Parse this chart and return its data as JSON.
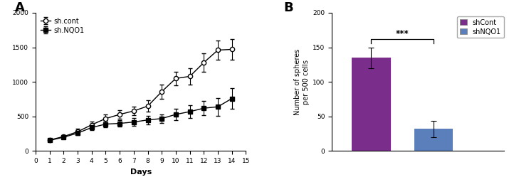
{
  "panel_A": {
    "days": [
      1,
      2,
      3,
      4,
      5,
      6,
      7,
      8,
      9,
      10,
      11,
      12,
      13,
      14
    ],
    "shcont_mean": [
      160,
      210,
      280,
      380,
      470,
      530,
      580,
      650,
      860,
      1050,
      1080,
      1280,
      1460,
      1470
    ],
    "shcont_err": [
      20,
      25,
      40,
      50,
      60,
      60,
      60,
      80,
      100,
      100,
      120,
      130,
      140,
      150
    ],
    "shnqo1_mean": [
      155,
      200,
      260,
      340,
      390,
      400,
      420,
      450,
      470,
      530,
      570,
      620,
      640,
      760
    ],
    "shnqo1_err": [
      15,
      20,
      30,
      40,
      50,
      50,
      60,
      60,
      60,
      80,
      90,
      100,
      130,
      150
    ],
    "xlabel": "Days",
    "ylim": [
      0,
      2000
    ],
    "yticks": [
      0,
      500,
      1000,
      1500,
      2000
    ],
    "xticks": [
      0,
      1,
      2,
      3,
      4,
      5,
      6,
      7,
      8,
      9,
      10,
      11,
      12,
      13,
      14,
      15
    ],
    "legend_shcont": "sh.cont",
    "legend_shnqo1": "sh.NQO1",
    "panel_label": "A"
  },
  "panel_B": {
    "categories": [
      "shCont",
      "shNQO1"
    ],
    "values": [
      135,
      32
    ],
    "errors": [
      15,
      12
    ],
    "bar_color_cont": "#7B2D8B",
    "bar_color_nqo1": "#5B7FBB",
    "ylabel": "Number of spheres\nper 500 cells",
    "ylim": [
      0,
      200
    ],
    "yticks": [
      0,
      50,
      100,
      150,
      200
    ],
    "legend_shcont": "shCont",
    "legend_shnqo1": "shNQO1",
    "panel_label": "B",
    "significance": "***"
  },
  "bg_color": "#ffffff"
}
